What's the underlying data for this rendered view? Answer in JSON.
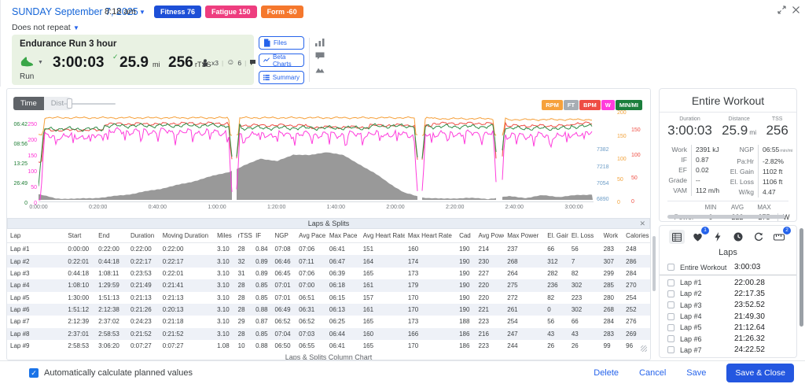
{
  "header": {
    "date": "SUNDAY September 7, 2025",
    "time": "8:18 am",
    "repeat": "Does not repeat",
    "badges": [
      {
        "label": "Fitness 76",
        "color": "#1d4fd7"
      },
      {
        "label": "Fatigue 150",
        "color": "#ee3d7f"
      },
      {
        "label": "Form -60",
        "color": "#f5782d"
      }
    ]
  },
  "workout": {
    "title": "Endurance Run 3 hour",
    "sport": "Run",
    "duration": "3:00:03",
    "distance": "25.9",
    "distance_unit": "mi",
    "tss": "256",
    "tss_unit": "rTSS",
    "equipment_count": "x3",
    "feel_score": "6",
    "comment_count": "x3"
  },
  "actions": {
    "files": "Files",
    "beta_charts": "Beta Charts",
    "summary": "Summary"
  },
  "chart": {
    "time_toggle": "Time",
    "dist_toggle": "Dist",
    "legend": [
      {
        "label": "RPM",
        "color": "#f6a13c"
      },
      {
        "label": "FT",
        "color": "#a7adb4"
      },
      {
        "label": "BPM",
        "color": "#ee4d44"
      },
      {
        "label": "W",
        "color": "#ff3bdc"
      },
      {
        "label": "MIN/MI",
        "color": "#1b7e3c"
      }
    ]
  },
  "chart_data": {
    "type": "line",
    "x_axis": {
      "mode": "time",
      "total_seconds": 11180,
      "ticks": [
        "0:00:00",
        "0:20:00",
        "0:40:00",
        "1:00:00",
        "1:20:00",
        "1:40:00",
        "2:00:00",
        "2:20:00",
        "2:40:00",
        "3:00:00"
      ]
    },
    "y_axes": {
      "pace": {
        "side": "left",
        "color": "#1e7d34",
        "ticks": [
          "06:42",
          "08:56",
          "13:25",
          "26:49",
          "0"
        ]
      },
      "power": {
        "side": "left",
        "color": "#ff2fd4",
        "ticks": [
          "250",
          "200",
          "150",
          "100",
          "50",
          "0"
        ]
      },
      "elevation": {
        "side": "right",
        "color": "#6d9dc7",
        "ticks": [
          "7382",
          "7218",
          "7054",
          "6890"
        ]
      },
      "cadence": {
        "side": "right",
        "color": "#f2a33c",
        "ticks": [
          "200",
          "150",
          "100",
          "50",
          "0"
        ]
      },
      "heart_rate": {
        "side": "right",
        "color": "#ef5046",
        "ticks": [
          "150",
          "100",
          "50",
          "0"
        ]
      }
    },
    "lap_ends_s": [
      1320,
      2658,
      4091,
      5399,
      6673,
      7958,
      9422,
      10733,
      11180
    ],
    "series": [
      {
        "name": "cadence",
        "unit": "rpm",
        "color": "#f6a13c",
        "lap_values": [
          190,
          190,
          190,
          190,
          190,
          190,
          188,
          186,
          186
        ]
      },
      {
        "name": "heart_rate",
        "unit": "bpm",
        "color": "#ee4d44",
        "lap_values": [
          151,
          164,
          165,
          161,
          157,
          161,
          165,
          160,
          165
        ]
      },
      {
        "name": "pace",
        "unit": "sec_per_mi",
        "color": "#2e8b44",
        "lap_values": [
          428,
          406,
          405,
          421,
          421,
          409,
          412,
          424,
          410
        ]
      },
      {
        "name": "power",
        "unit": "W",
        "color": "#ff3bdc",
        "lap_values": [
          214,
          230,
          227,
          220,
          220,
          221,
          223,
          216,
          223
        ]
      }
    ],
    "elevation_profile": {
      "color": "#909090",
      "points": [
        [
          0,
          6945
        ],
        [
          0.03,
          6905
        ],
        [
          0.07,
          6900
        ],
        [
          0.12,
          6915
        ],
        [
          0.17,
          6950
        ],
        [
          0.22,
          7000
        ],
        [
          0.27,
          7060
        ],
        [
          0.31,
          7120
        ],
        [
          0.345,
          7170
        ],
        [
          0.36,
          7200
        ],
        [
          0.4,
          7300
        ],
        [
          0.43,
          7270
        ],
        [
          0.46,
          7340
        ],
        [
          0.49,
          7330
        ],
        [
          0.52,
          7365
        ],
        [
          0.55,
          7330
        ],
        [
          0.58,
          7240
        ],
        [
          0.61,
          7140
        ],
        [
          0.64,
          7030
        ],
        [
          0.66,
          6960
        ],
        [
          0.69,
          6915
        ],
        [
          0.73,
          6900
        ],
        [
          0.77,
          6910
        ],
        [
          0.81,
          6900
        ],
        [
          0.85,
          6925
        ],
        [
          0.88,
          6910
        ],
        [
          0.91,
          6935
        ],
        [
          0.94,
          6920
        ],
        [
          0.97,
          6935
        ],
        [
          1.0,
          6945
        ]
      ]
    },
    "gaps_frac": [
      0.353,
      0.688,
      0.831
    ]
  },
  "table": {
    "title": "Laps & Splits",
    "footer_link": "Laps & Splits Column Chart",
    "columns": [
      "Lap",
      "Start",
      "End",
      "Duration",
      "Moving Duration",
      "Miles",
      "rTSS",
      "IF",
      "NGP",
      "Avg Pace",
      "Max Pace",
      "Avg Heart Rate",
      "Max Heart Rate",
      "Cad",
      "Avg Power",
      "Max Power",
      "El. Gain",
      "El. Loss",
      "Work",
      "Calories"
    ],
    "rows": [
      [
        "Lap #1",
        "0:00:00",
        "0:22:00",
        "0:22:00",
        "0:22:00",
        "3.10",
        "28",
        "0.84",
        "07:08",
        "07:06",
        "06:41",
        "151",
        "160",
        "190",
        "214",
        "237",
        "66",
        "56",
        "283",
        "248"
      ],
      [
        "Lap #2",
        "0:22:01",
        "0:44:18",
        "0:22:17",
        "0:22:17",
        "3.10",
        "32",
        "0.89",
        "06:46",
        "07:11",
        "06:47",
        "164",
        "174",
        "190",
        "230",
        "268",
        "312",
        "7",
        "307",
        "286"
      ],
      [
        "Lap #3",
        "0:44:18",
        "1:08:11",
        "0:23:53",
        "0:22:01",
        "3.10",
        "31",
        "0.89",
        "06:45",
        "07:06",
        "06:39",
        "165",
        "173",
        "190",
        "227",
        "264",
        "282",
        "82",
        "299",
        "284"
      ],
      [
        "Lap #4",
        "1:08:10",
        "1:29:59",
        "0:21:49",
        "0:21:41",
        "3.10",
        "28",
        "0.85",
        "07:01",
        "07:00",
        "06:18",
        "161",
        "179",
        "190",
        "220",
        "275",
        "236",
        "302",
        "285",
        "270"
      ],
      [
        "Lap #5",
        "1:30:00",
        "1:51:13",
        "0:21:13",
        "0:21:13",
        "3.10",
        "28",
        "0.85",
        "07:01",
        "06:51",
        "06:15",
        "157",
        "170",
        "190",
        "220",
        "272",
        "82",
        "223",
        "280",
        "254"
      ],
      [
        "Lap #6",
        "1:51:12",
        "2:12:38",
        "0:21:26",
        "0:20:13",
        "3.10",
        "28",
        "0.88",
        "06:49",
        "06:31",
        "06:13",
        "161",
        "170",
        "190",
        "221",
        "261",
        "0",
        "302",
        "268",
        "252"
      ],
      [
        "Lap #7",
        "2:12:39",
        "2:37:02",
        "0:24:23",
        "0:21:18",
        "3.10",
        "29",
        "0.87",
        "06:52",
        "06:52",
        "06:25",
        "165",
        "173",
        "188",
        "223",
        "254",
        "56",
        "66",
        "284",
        "276"
      ],
      [
        "Lap #8",
        "2:37:01",
        "2:58:53",
        "0:21:52",
        "0:21:52",
        "3.10",
        "28",
        "0.85",
        "07:04",
        "07:03",
        "06:44",
        "160",
        "166",
        "186",
        "216",
        "247",
        "43",
        "43",
        "283",
        "269"
      ],
      [
        "Lap #9",
        "2:58:53",
        "3:06:20",
        "0:07:27",
        "0:07:27",
        "1.08",
        "10",
        "0.88",
        "06:50",
        "06:55",
        "06:41",
        "165",
        "170",
        "186",
        "223",
        "244",
        "26",
        "26",
        "99",
        "96"
      ]
    ]
  },
  "summary_panel": {
    "title": "Entire Workout",
    "big": [
      {
        "label": "Duration",
        "value": "3:00:03",
        "unit": ""
      },
      {
        "label": "Distance",
        "value": "25.9",
        "unit": "mi"
      },
      {
        "label": "TSS",
        "value": "256",
        "unit": ""
      }
    ],
    "stats_left": [
      [
        "Work",
        "2391 kJ",
        ""
      ],
      [
        "IF",
        "0.87",
        ""
      ],
      [
        "EF",
        "0.02",
        ""
      ],
      [
        "Grade",
        "--",
        ""
      ],
      [
        "VAM",
        "112 m/h",
        ""
      ]
    ],
    "stats_right": [
      [
        "NGP",
        "06:55",
        "min/mi"
      ],
      [
        "Pa:Hr",
        "-2.82%",
        ""
      ],
      [
        "El. Gain",
        "1102 ft",
        ""
      ],
      [
        "El. Loss",
        "1106 ft",
        ""
      ],
      [
        "W/kg",
        "4.47",
        ""
      ]
    ],
    "mam": {
      "cols": [
        "MIN",
        "AVG",
        "MAX"
      ],
      "row_label": "Power",
      "values": [
        "0",
        "222",
        "275"
      ],
      "unit": "W"
    }
  },
  "laps_panel": {
    "title": "Laps",
    "heart_badge": "1",
    "ruler_badge": "2",
    "rows": [
      {
        "label": "Entire Workout",
        "value": "3:00:03"
      },
      {
        "label": "Lap #1",
        "value": "22:00.28"
      },
      {
        "label": "Lap #2",
        "value": "22:17.35"
      },
      {
        "label": "Lap #3",
        "value": "23:52.52"
      },
      {
        "label": "Lap #4",
        "value": "21:49.30"
      },
      {
        "label": "Lap #5",
        "value": "21:12.64"
      },
      {
        "label": "Lap #6",
        "value": "21:26.32"
      },
      {
        "label": "Lap #7",
        "value": "24:22.52"
      }
    ]
  },
  "footer": {
    "auto_calc": "Automatically calculate planned values",
    "checked": true,
    "delete": "Delete",
    "cancel": "Cancel",
    "save": "Save",
    "save_close": "Save & Close"
  }
}
